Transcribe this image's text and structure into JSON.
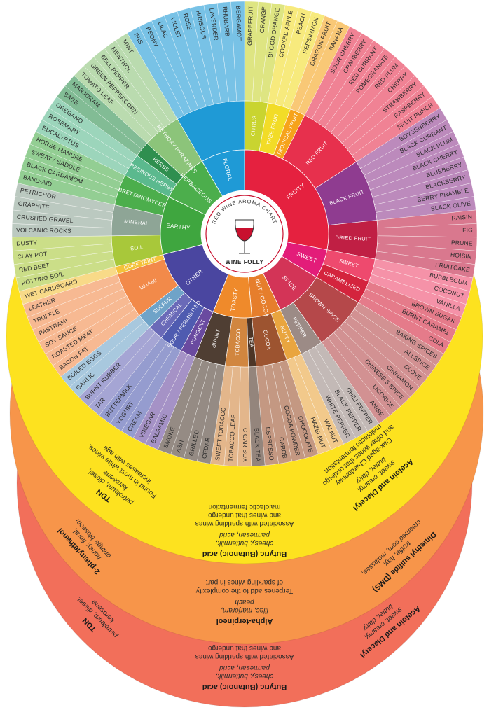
{
  "wheel": {
    "title": "RED WINE AROMA CHART",
    "brand": "WINE FOLLY",
    "categories": [
      {
        "label": "FRUITY",
        "color": "#e5213f",
        "subcategories": [
          {
            "label": "CITRUS",
            "color": "#c9d430",
            "aromas": [
              "GRAPEFRUIT",
              "ORANGE",
              "BLOOD ORANGE"
            ]
          },
          {
            "label": "TREE FRUIT",
            "color": "#f2dc27",
            "aromas": [
              "COOKED APPLE",
              "PEACH",
              "PERSIMMON"
            ]
          },
          {
            "label": "TROPICAL FRUIT",
            "color": "#f6a31b",
            "aromas": [
              "DRAGON FRUIT",
              "BANANA"
            ]
          },
          {
            "label": "RED FRUIT",
            "color": "#e7304d",
            "aromas": [
              "SOUR CHERRY",
              "CRANBERRY",
              "RED CURRANT",
              "POMEGRANATE",
              "RED PLUM",
              "CHERRY",
              "STRAWBERRY",
              "RASPBERRY",
              "FRUIT PUNCH"
            ]
          },
          {
            "label": "BLACK FRUIT",
            "color": "#8f3c90",
            "aromas": [
              "BOYSENBERRY",
              "BLACK CURRANT",
              "BLACK PLUM",
              "BLACK CHERRY",
              "BLUEBERRY",
              "BLACKBERRY",
              "BERRY BRAMBLE",
              "BLACK OLIVE"
            ]
          },
          {
            "label": "DRIED FRUIT",
            "color": "#c01f44",
            "aromas": [
              "RAISIN",
              "FIG",
              "PRUNE",
              "HOISIN",
              "FRUITCAKE"
            ]
          }
        ]
      },
      {
        "label": "SWEET",
        "color": "#e31c79",
        "subcategories": [
          {
            "label": "SWEET",
            "color": "#ee4a6e",
            "aromas": [
              "BUBBLEGUM",
              "COCONUT",
              "VANILLA"
            ]
          },
          {
            "label": "CARAMELIZED",
            "color": "#d4243d",
            "aromas": [
              "BROWN SUGAR",
              "BURNT CARAMEL",
              "COLA"
            ]
          }
        ]
      },
      {
        "label": "SPICE",
        "color": "#d33457",
        "subcategories": [
          {
            "label": "BROWN SPICE",
            "color": "#b5484a",
            "aromas": [
              "BAKING SPICES",
              "ALLSPICE",
              "CLOVE",
              "CINNAMON",
              "CHINESE 5 SPICE",
              "LICORICE",
              "ANISE"
            ]
          },
          {
            "label": "PEPPER",
            "color": "#9c8b86",
            "aromas": [
              "CHILI PEPPER",
              "BLACK PEPPER",
              "WHITE PEPPER"
            ]
          }
        ]
      },
      {
        "label": "NUT / COCOA",
        "color": "#e67e2c",
        "subcategories": [
          {
            "label": "NUTTY",
            "color": "#e9a53f",
            "aromas": [
              "WALNUT",
              "HAZELNUT"
            ]
          },
          {
            "label": "COCOA",
            "color": "#9d5430",
            "aromas": [
              "CHOCOLATE",
              "COCOA POWDER",
              "CAROB",
              "ESPRESSO"
            ]
          }
        ]
      },
      {
        "label": "TOASTY",
        "color": "#ef8a2b",
        "subcategories": [
          {
            "label": "TEA",
            "color": "#4d3526",
            "aromas": [
              "BLACK TEA"
            ]
          },
          {
            "label": "TOBACCO",
            "color": "#d1863f",
            "aromas": [
              "CIGAR BOX",
              "TOBACCO LEAF",
              "SWEET TOBACCO"
            ]
          },
          {
            "label": "BURNT",
            "color": "#4f3e33",
            "aromas": [
              "CEDAR",
              "GRILLED",
              "ASH",
              "SMOKE"
            ]
          }
        ]
      },
      {
        "label": "OTHER",
        "color": "#4a46a0",
        "subcategories": [
          {
            "label": "PUNGENT",
            "color": "#6a4aa0",
            "aromas": [
              "BALSAMIC",
              "VINEGAR"
            ]
          },
          {
            "label": "SOUR / FERMENTED",
            "color": "#4f5bb0",
            "aromas": [
              "CREAM",
              "YOGURT",
              "BUTTERMILK"
            ]
          },
          {
            "label": "CHEMICAL",
            "color": "#6a6ab8",
            "aromas": [
              "TAR",
              "BURNT RUBBER"
            ]
          },
          {
            "label": "SULFUR",
            "color": "#6fa3c8",
            "aromas": [
              "GARLIC",
              "BOILED EGGS"
            ]
          },
          {
            "label": "UMAMI",
            "color": "#f28a4a",
            "aromas": [
              "BACON FAT",
              "ROASTED MEAT",
              "SOY SAUCE",
              "PASTRAMI",
              "TRUFFLE",
              "LEATHER"
            ]
          },
          {
            "label": "CORK TAINT",
            "color": "#f4c23a",
            "aromas": [
              "WET CARDBOARD"
            ]
          }
        ]
      },
      {
        "label": "EARTHY",
        "color": "#3fa63f",
        "subcategories": [
          {
            "label": "SOIL",
            "color": "#a8c83a",
            "aromas": [
              "POTTING SOIL",
              "RED BEET",
              "CLAY POT",
              "DUSTY"
            ]
          },
          {
            "label": "MINERAL",
            "color": "#8ea596",
            "aromas": [
              "VOLCANIC ROCKS",
              "CRUSHED GRAVEL",
              "GRAPHITE",
              "PETRICHOR"
            ]
          },
          {
            "label": "BRETTANOMYCES",
            "color": "#4cae4c",
            "aromas": [
              "BAND-AID",
              "BLACK CARDAMOM",
              "SWEATY SADDLE",
              "HORSE MANURE"
            ]
          }
        ]
      },
      {
        "label": "HERBACEOUS",
        "color": "#4cae4c",
        "subcategories": [
          {
            "label": "RESINOUS HERBS",
            "color": "#5bb98e",
            "aromas": [
              "EUCALYPTUS",
              "ROSEMARY",
              "OREGANO"
            ]
          },
          {
            "label": "HERBS",
            "color": "#2f8f4f",
            "aromas": [
              "SAGE",
              "MARJORAM"
            ]
          },
          {
            "label": "METHOXY PYRAZINES",
            "color": "#8cc47a",
            "aromas": [
              "TOMATO LEAF",
              "GREEN PEPPERCORN",
              "BELL PEPPER",
              "MENTHOL",
              "MINT"
            ]
          }
        ]
      },
      {
        "label": "FLORAL",
        "color": "#1f9ad6",
        "subcategories": [
          {
            "color": "#1f9ad6",
            "aromas": [
              "IRIS",
              "PEONY",
              "LILAC",
              "VIOLET",
              "ROSE",
              "HIBISCUS",
              "LAVENDER",
              "RHUBARB",
              "BERGAMOT"
            ]
          }
        ]
      }
    ]
  },
  "discs": [
    {
      "color": "#f26f5a",
      "blocks": [
        {
          "title": "Butyric (Butanoic) acid",
          "descriptors": [
            "cheesy, buttermilk,",
            "parmesan, acrid"
          ],
          "notes": [
            "Associated with sparkling wines",
            "and wines that undergo"
          ]
        },
        {
          "title": "TDN",
          "descriptors": [
            "petroleum, diesel,",
            "kerosene"
          ]
        },
        {
          "title": "Acetoin and Diacetyl",
          "descriptors": [
            "sweet, creamy,",
            "butter, dairy"
          ]
        }
      ]
    },
    {
      "color": "#f7954a",
      "blocks": [
        {
          "title": "Alpha-terpineol",
          "descriptors": [
            "lilac, marjoram,",
            "peach"
          ],
          "notes": [
            "Terpenes add to the complexity",
            "of sparkling wines in part"
          ]
        },
        {
          "title": "2-phenylethanol",
          "descriptors": [
            "honey, floral,",
            "orange blossom"
          ]
        },
        {
          "title": "Dimethyl sulfide (DMS)",
          "descriptors": [
            "truffle, hay,",
            "creamed corn, molasses,"
          ]
        }
      ]
    },
    {
      "color": "#fde21f",
      "blocks": [
        {
          "title": "Butyric (Butanoic) acid",
          "descriptors": [
            "cheesy, buttermilk,",
            "parmesan, acrid"
          ],
          "notes": [
            "Associated with sparkling wines",
            "and wines that undergo",
            "malolactic fermentation"
          ]
        },
        {
          "title": "TDN",
          "descriptors": [
            "petroleum, diesel,",
            "kerosene"
          ],
          "notes": [
            "Found in most white wines,",
            "increases with age"
          ]
        },
        {
          "title": "Acetoin and Diacetyl",
          "descriptors": [
            "sweet, creamy,",
            "butter, dairy"
          ],
          "notes": [
            "Oak-aged Chardonnay",
            "and other wines that undergo",
            "malolactic fermentation"
          ]
        }
      ]
    }
  ]
}
